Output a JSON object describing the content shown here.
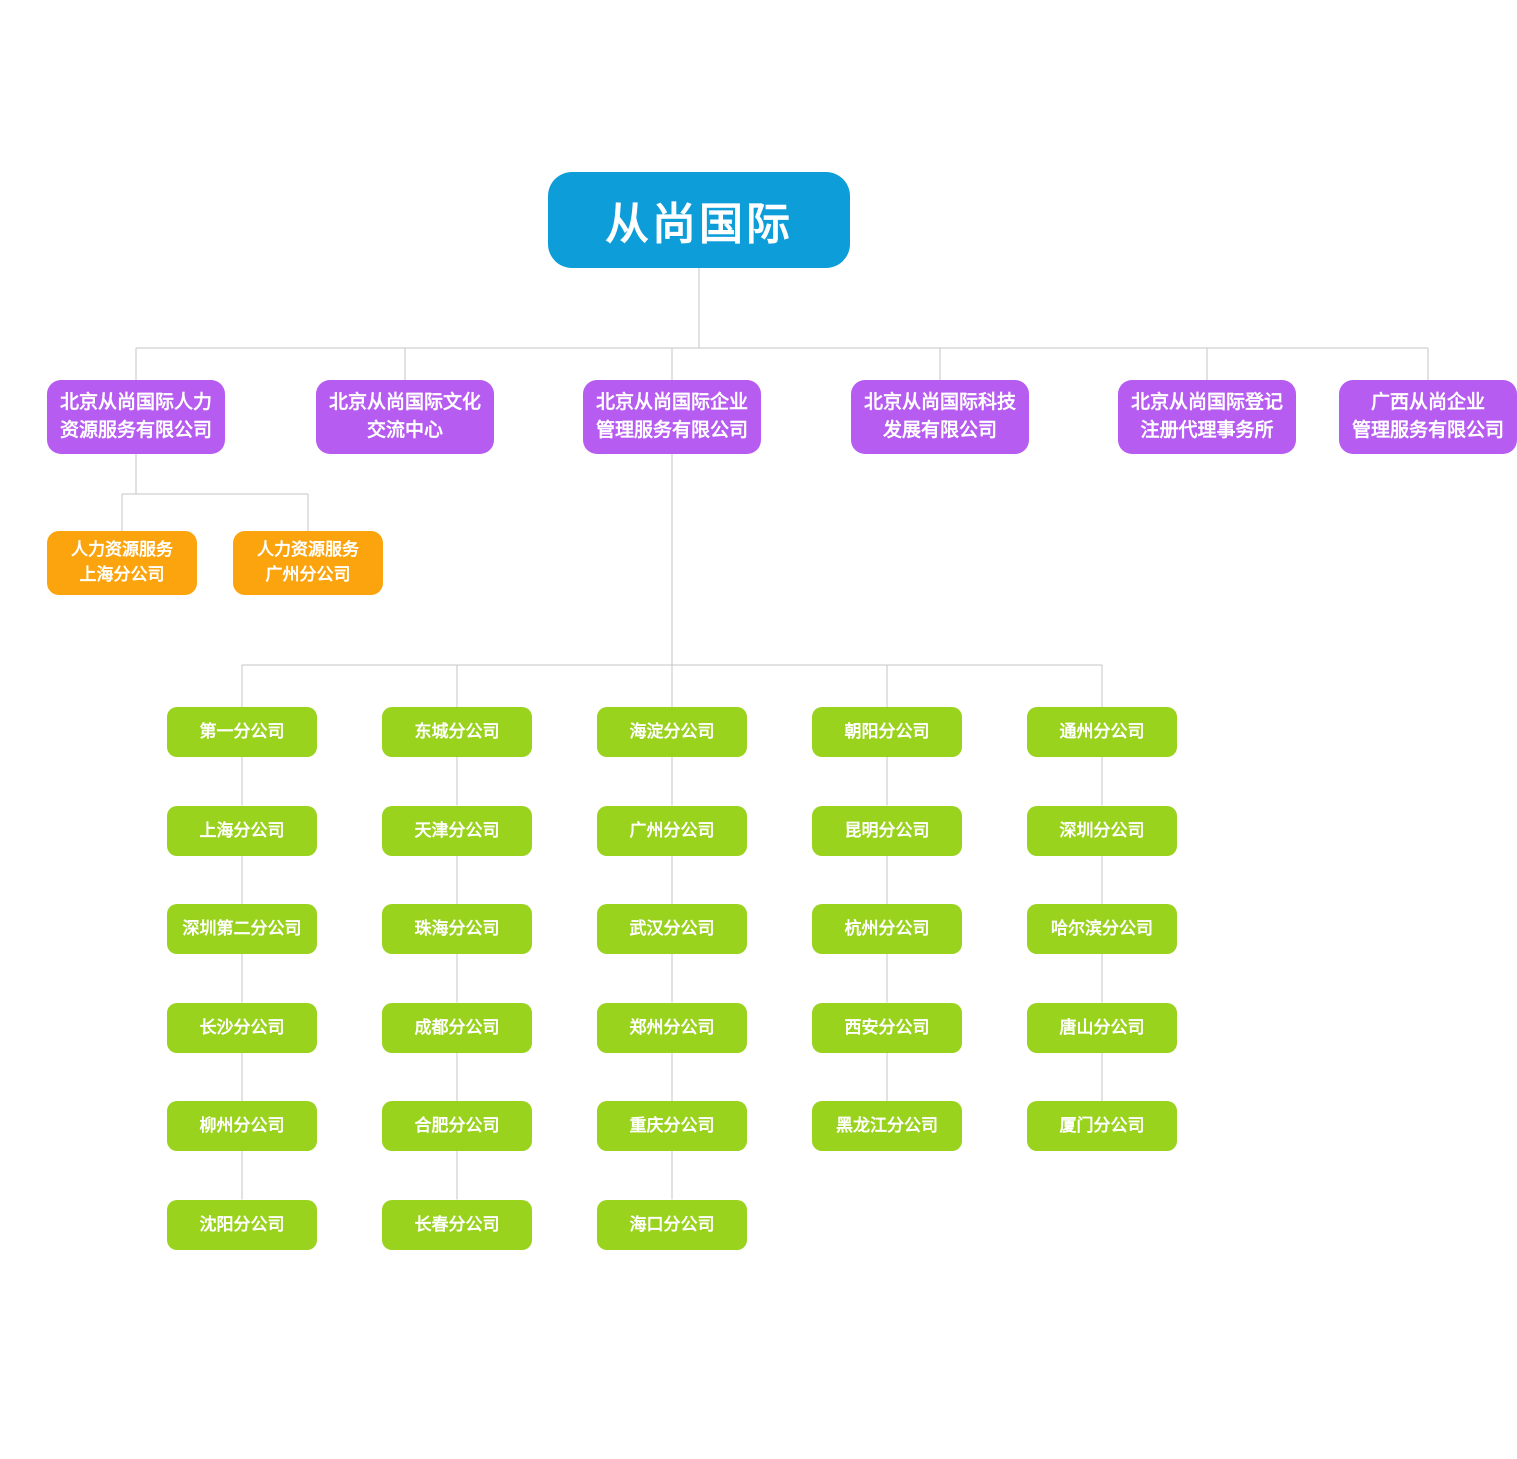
{
  "root": {
    "label": "从尚国际"
  },
  "level1": [
    {
      "lines": [
        "北京从尚国际人力",
        "资源服务有限公司"
      ]
    },
    {
      "lines": [
        "北京从尚国际文化",
        "交流中心"
      ]
    },
    {
      "lines": [
        "北京从尚国际企业",
        "管理服务有限公司"
      ]
    },
    {
      "lines": [
        "北京从尚国际科技",
        "发展有限公司"
      ]
    },
    {
      "lines": [
        "北京从尚国际登记",
        "注册代理事务所"
      ]
    },
    {
      "lines": [
        "广西从尚企业",
        "管理服务有限公司"
      ]
    }
  ],
  "hr_branches": [
    {
      "lines": [
        "人力资源服务",
        "上海分公司"
      ]
    },
    {
      "lines": [
        "人力资源服务",
        "广州分公司"
      ]
    }
  ],
  "branch_columns": [
    [
      "第一分公司",
      "上海分公司",
      "深圳第二分公司",
      "长沙分公司",
      "柳州分公司",
      "沈阳分公司"
    ],
    [
      "东城分公司",
      "天津分公司",
      "珠海分公司",
      "成都分公司",
      "合肥分公司",
      "长春分公司"
    ],
    [
      "海淀分公司",
      "广州分公司",
      "武汉分公司",
      "郑州分公司",
      "重庆分公司",
      "海口分公司"
    ],
    [
      "朝阳分公司",
      "昆明分公司",
      "杭州分公司",
      "西安分公司",
      "黑龙江分公司"
    ],
    [
      "通州分公司",
      "深圳分公司",
      "哈尔滨分公司",
      "唐山分公司",
      "厦门分公司"
    ]
  ],
  "colors": {
    "root": "#0d9dd9",
    "level1": "#b75cf0",
    "hr_branch": "#fca40d",
    "city_branch": "#9ad31d",
    "connector": "#c6c6c6"
  }
}
